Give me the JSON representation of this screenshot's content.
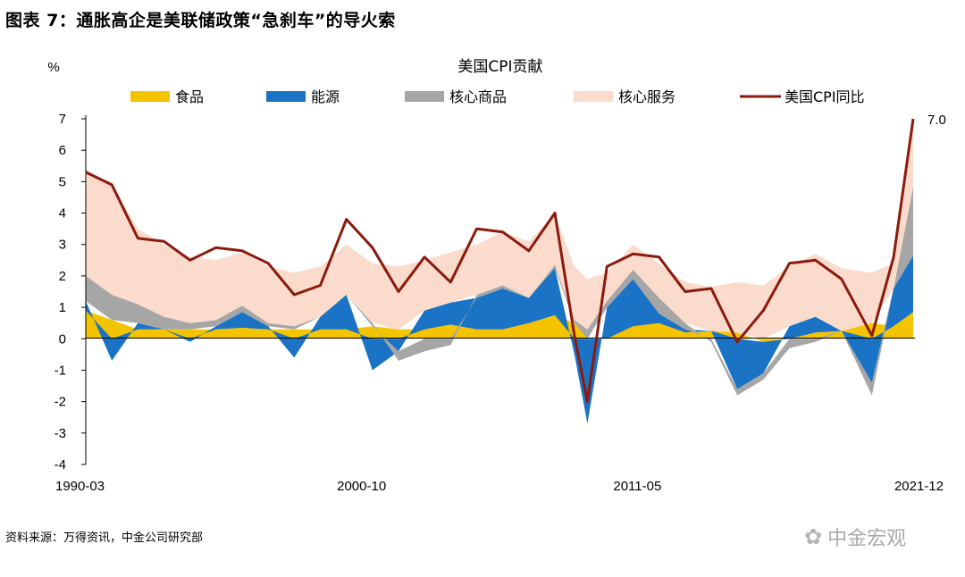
{
  "figure": {
    "title": "图表 7：通胀高企是美联储政策“急刹车”的导火索",
    "source": "资料来源：万得资讯，中金公司研究部",
    "watermark": "中金宏观",
    "watermark_icon": "wechat-icon"
  },
  "chart_data": {
    "type": "area",
    "title": "美国CPI贡献",
    "ylabel": "%",
    "xlabel": "",
    "ylim": [
      -4,
      7
    ],
    "yticks": [
      7,
      6,
      5,
      4,
      3,
      2,
      1,
      0,
      -1,
      -2,
      -3,
      -4
    ],
    "x": [
      "1990-03",
      "1991-03",
      "1992-03",
      "1993-03",
      "1994-03",
      "1995-03",
      "1996-03",
      "1997-03",
      "1998-03",
      "1999-03",
      "2000-03",
      "2001-03",
      "2002-03",
      "2003-03",
      "2004-03",
      "2005-03",
      "2006-03",
      "2007-03",
      "2008-03",
      "2008-12",
      "2009-06",
      "2010-03",
      "2011-03",
      "2012-03",
      "2013-03",
      "2014-03",
      "2015-03",
      "2016-03",
      "2017-03",
      "2018-03",
      "2019-03",
      "2020-05",
      "2021-03",
      "2021-12"
    ],
    "xticks": [
      "1990-03",
      "2000-10",
      "2011-05",
      "2021-12"
    ],
    "legend_position": "top",
    "grid": false,
    "series": [
      {
        "name": "食品",
        "kind": "stack",
        "color": "#f5c400",
        "values": [
          0.9,
          0.6,
          0.3,
          0.3,
          0.3,
          0.3,
          0.35,
          0.3,
          0.3,
          0.3,
          0.3,
          0.4,
          0.3,
          0.3,
          0.45,
          0.3,
          0.3,
          0.5,
          0.75,
          0.5,
          0.0,
          0.0,
          0.4,
          0.5,
          0.2,
          0.25,
          0.2,
          -0.1,
          0.0,
          0.2,
          0.25,
          0.5,
          0.4,
          0.85
        ]
      },
      {
        "name": "能源",
        "kind": "stack",
        "color": "#1a73c4",
        "values": [
          0.3,
          -0.7,
          0.2,
          0.0,
          -0.1,
          0.1,
          0.5,
          0.1,
          -0.6,
          0.4,
          1.1,
          -1.0,
          -0.4,
          0.6,
          0.7,
          1.0,
          1.3,
          0.8,
          1.5,
          -0.5,
          -2.7,
          1.0,
          1.5,
          0.3,
          0.1,
          0.0,
          -1.6,
          -1.0,
          0.4,
          0.5,
          0.0,
          -1.4,
          1.2,
          1.8
        ]
      },
      {
        "name": "核心商品",
        "kind": "stack",
        "color": "#a6a6a6",
        "values": [
          0.8,
          0.8,
          0.6,
          0.4,
          0.2,
          0.2,
          0.2,
          0.1,
          0.1,
          0.0,
          0.0,
          0.1,
          -0.3,
          -0.4,
          -0.2,
          0.1,
          0.1,
          0.0,
          0.1,
          0.1,
          0.3,
          0.2,
          0.3,
          0.5,
          0.2,
          -0.1,
          -0.2,
          -0.2,
          -0.3,
          -0.1,
          0.0,
          -0.4,
          0.0,
          2.2
        ]
      },
      {
        "name": "核心服务",
        "kind": "stack",
        "color": "#fadbcc",
        "values": [
          3.4,
          3.5,
          2.4,
          2.3,
          2.1,
          1.9,
          1.7,
          1.8,
          1.7,
          1.6,
          1.6,
          1.9,
          2.0,
          1.6,
          1.6,
          1.6,
          1.7,
          1.8,
          1.6,
          1.7,
          1.6,
          0.9,
          0.8,
          1.1,
          1.3,
          1.4,
          1.6,
          1.7,
          1.9,
          2.0,
          2.0,
          1.6,
          0.8,
          2.1
        ]
      },
      {
        "name": "美国CPI同比",
        "kind": "line",
        "color": "#8b1a0d",
        "values": [
          5.3,
          4.9,
          3.2,
          3.1,
          2.5,
          2.9,
          2.8,
          2.4,
          1.4,
          1.7,
          3.8,
          2.9,
          1.5,
          2.6,
          1.8,
          3.5,
          3.4,
          2.8,
          4.0,
          0.1,
          -2.0,
          2.3,
          2.7,
          2.6,
          1.5,
          1.6,
          -0.1,
          0.9,
          2.4,
          2.5,
          1.9,
          0.1,
          2.6,
          7.0
        ]
      }
    ],
    "annotations": [
      {
        "x": "2021-12",
        "y": 7.0,
        "text": "7.0"
      }
    ]
  }
}
